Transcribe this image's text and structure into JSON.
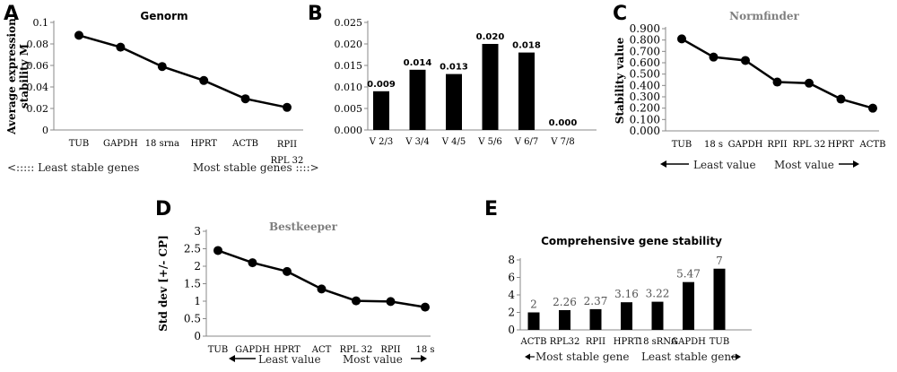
{
  "panels": {
    "A": {
      "label": "A",
      "notes": [
        "<:::::  Least stable genes",
        "Most stable genes  ::::>"
      ]
    },
    "B": {
      "label": "B"
    },
    "C": {
      "label": "C",
      "notes": [
        "Least value",
        "Most value"
      ]
    },
    "D": {
      "label": "D",
      "notes": [
        "Least value",
        "Most value"
      ]
    },
    "E": {
      "label": "E",
      "notes": [
        "Most stable gene",
        "Least stable gene"
      ]
    }
  },
  "chart_data": [
    {
      "id": "A",
      "type": "line",
      "title": "Genorm",
      "xlabel": "",
      "ylabel": "Average expression stability M",
      "categories": [
        "TUB",
        "GAPDH",
        "18 srna",
        "HPRT",
        "ACTB",
        "RPII RPL 32"
      ],
      "category_display": [
        [
          "TUB"
        ],
        [
          "GAPDH"
        ],
        [
          "18 srna"
        ],
        [
          "HPRT"
        ],
        [
          "ACTB"
        ],
        [
          "RPII",
          "RPL 32"
        ]
      ],
      "values": [
        0.088,
        0.077,
        0.059,
        0.046,
        0.029,
        0.021
      ],
      "ylim": [
        0,
        0.1
      ],
      "yticks": [
        "0",
        "0.02",
        "0.04",
        "0.06",
        "0.08",
        "0.1"
      ],
      "grid": false
    },
    {
      "id": "B",
      "type": "bar",
      "title": "",
      "xlabel": "",
      "ylabel": "",
      "categories": [
        "V 2/3",
        "V 3/4",
        "V 4/5",
        "V 5/6",
        "V 6/7",
        "V 7/8"
      ],
      "values": [
        0.009,
        0.014,
        0.013,
        0.02,
        0.018,
        0.0
      ],
      "data_labels": [
        "0.009",
        "0.014",
        "0.013",
        "0.020",
        "0.018",
        "0.000"
      ],
      "ylim": [
        0,
        0.025
      ],
      "yticks": [
        "0.000",
        "0.005",
        "0.010",
        "0.015",
        "0.020",
        "0.025"
      ],
      "grid": false
    },
    {
      "id": "C",
      "type": "line",
      "title": "Normfinder",
      "xlabel": "",
      "ylabel": "Stability value",
      "categories": [
        "TUB",
        "18 s",
        "GAPDH",
        "RPII",
        "RPL 32",
        "HPRT",
        "ACTB"
      ],
      "values": [
        0.81,
        0.65,
        0.62,
        0.43,
        0.42,
        0.28,
        0.2
      ],
      "ylim": [
        0,
        0.9
      ],
      "yticks": [
        "0.000",
        "0.100",
        "0.200",
        "0.300",
        "0.400",
        "0.500",
        "0.600",
        "0.700",
        "0.800",
        "0.900"
      ],
      "grid": false
    },
    {
      "id": "D",
      "type": "line",
      "title": "Bestkeeper",
      "xlabel": "",
      "ylabel": "Std dev [+/- CP]",
      "categories": [
        "TUB",
        "GAPDH",
        "HPRT",
        "ACT",
        "RPL 32",
        "RPII",
        "18 s"
      ],
      "values": [
        2.45,
        2.1,
        1.85,
        1.35,
        1.01,
        0.99,
        0.83
      ],
      "ylim": [
        0,
        3
      ],
      "yticks": [
        "0",
        "0.5",
        "1",
        "1.5",
        "2",
        "2.5",
        "3"
      ],
      "grid": false
    },
    {
      "id": "E",
      "type": "bar",
      "title": "Comprehensive gene stability",
      "xlabel": "",
      "ylabel": "",
      "categories": [
        "ACTB",
        "RPL32",
        "RPII",
        "HPRT",
        "18 sRNA",
        "GAPDH",
        "TUB"
      ],
      "values": [
        2,
        2.26,
        2.37,
        3.16,
        3.22,
        5.47,
        7
      ],
      "data_labels": [
        "2",
        "2.26",
        "2.37",
        "3.16",
        "3.22",
        "5.47",
        "7"
      ],
      "ylim": [
        0,
        8
      ],
      "yticks": [
        "0",
        "2",
        "4",
        "6",
        "8"
      ],
      "grid": false
    }
  ]
}
